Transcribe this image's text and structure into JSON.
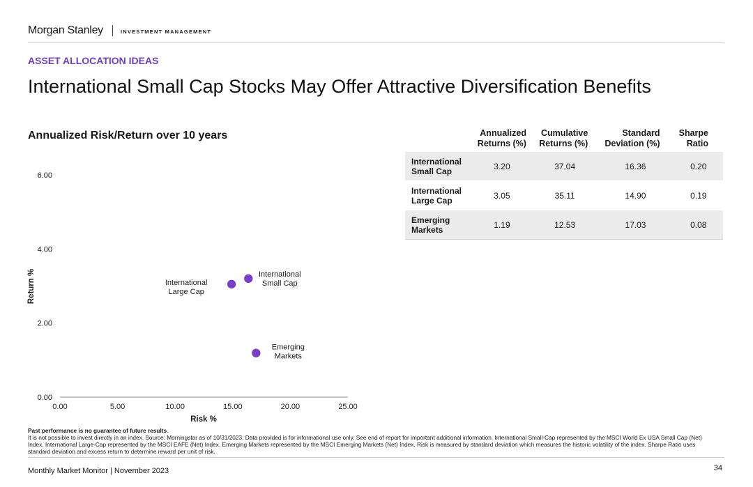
{
  "header": {
    "logo_text": "Morgan Stanley",
    "division": "INVESTMENT MANAGEMENT"
  },
  "section_label": "ASSET ALLOCATION IDEAS",
  "page_title": "International Small Cap Stocks May Offer Attractive Diversification Benefits",
  "chart_title": "Annualized Risk/Return over 10 years",
  "colors": {
    "accent": "#6e3fbf",
    "marker": "#7a3fc8",
    "table_shade": "#ebebeb"
  },
  "chart_data": {
    "type": "scatter",
    "title": "Annualized Risk/Return over 10 years",
    "xlabel": "Risk %",
    "ylabel": "Return %",
    "xlim": [
      0,
      25
    ],
    "ylim": [
      0,
      6
    ],
    "x_ticks": [
      "0.00",
      "5.00",
      "10.00",
      "15.00",
      "20.00",
      "25.00"
    ],
    "y_ticks": [
      "0.00",
      "2.00",
      "4.00",
      "6.00"
    ],
    "grid": false,
    "points": [
      {
        "label_lines": [
          "International",
          "Small Cap"
        ],
        "x": 16.36,
        "y": 3.2,
        "label_pos": "above-right"
      },
      {
        "label_lines": [
          "International",
          "Large Cap"
        ],
        "x": 14.9,
        "y": 3.05,
        "label_pos": "left"
      },
      {
        "label_lines": [
          "Emerging",
          "Markets"
        ],
        "x": 17.03,
        "y": 1.19,
        "label_pos": "right"
      }
    ]
  },
  "table": {
    "headers": [
      [
        "Annualized",
        "Returns (%)"
      ],
      [
        "Cumulative",
        "Returns (%)"
      ],
      [
        "Standard",
        "Deviation (%)"
      ],
      [
        "Sharpe",
        "Ratio"
      ]
    ],
    "rows": [
      {
        "name": [
          "International",
          "Small Cap"
        ],
        "values": [
          "3.20",
          "37.04",
          "16.36",
          "0.20"
        ]
      },
      {
        "name": [
          "International",
          "Large Cap"
        ],
        "values": [
          "3.05",
          "35.11",
          "14.90",
          "0.19"
        ]
      },
      {
        "name": [
          "Emerging",
          "Markets"
        ],
        "values": [
          "1.19",
          "12.53",
          "17.03",
          "0.08"
        ]
      }
    ]
  },
  "footnote": {
    "bold": "Past performance is no guarantee of future results",
    "text": "It is not possible to invest directly in an index. Source: Morningstar as of 10/31/2023. Data provided is for informational use only. See end of report for important additional information. International Small-Cap represented by the MSCI World Ex USA Small Cap (Net) Index. International Large-Cap represented by the MSCI EAFE (Net) Index. Emerging Markets represented by the MSCI Emerging Markets (Net) Index. Risk is measured by standard deviation which measures the historic volatility of the index. Sharpe Ratio uses standard deviation and excess return to determine reward per unit of risk."
  },
  "footer": {
    "text": "Monthly Market Monitor | November 2023",
    "page_number": "34"
  }
}
